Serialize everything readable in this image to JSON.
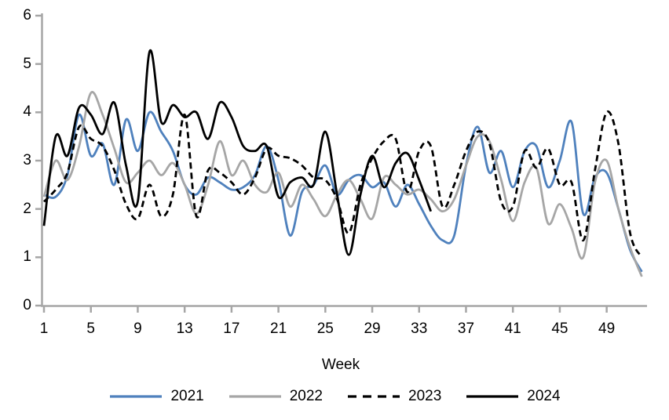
{
  "chart_data": {
    "type": "line",
    "title": "",
    "xlabel": "Week",
    "ylabel": "",
    "xlim": [
      1,
      52
    ],
    "ylim": [
      0,
      6
    ],
    "grid": false,
    "smoothed": true,
    "legend_position": "bottom",
    "x_ticks": [
      1,
      5,
      9,
      13,
      17,
      21,
      25,
      29,
      33,
      37,
      41,
      45,
      49
    ],
    "y_ticks": [
      0,
      1,
      2,
      3,
      4,
      5,
      6
    ],
    "axis_color": "#a6a6a6",
    "series": [
      {
        "name": "2021",
        "color": "#4f81bd",
        "style": "solid",
        "start_week": 1,
        "values": [
          2.3,
          2.25,
          2.7,
          3.95,
          3.1,
          3.35,
          2.5,
          3.85,
          3.2,
          4.0,
          3.6,
          3.2,
          2.5,
          2.3,
          2.65,
          2.55,
          2.4,
          2.45,
          2.7,
          3.3,
          2.6,
          1.45,
          2.35,
          2.5,
          2.9,
          2.3,
          2.6,
          2.7,
          2.45,
          2.55,
          2.05,
          2.5,
          2.1,
          1.65,
          1.35,
          1.45,
          2.9,
          3.7,
          2.75,
          3.2,
          2.45,
          3.2,
          3.3,
          2.45,
          3.0,
          3.8,
          1.9,
          2.65,
          2.75,
          2.0,
          1.15,
          0.7
        ]
      },
      {
        "name": "2022",
        "color": "#a6a6a6",
        "style": "solid",
        "start_week": 1,
        "values": [
          2.25,
          3.0,
          2.6,
          3.3,
          4.4,
          3.95,
          3.25,
          2.55,
          2.75,
          3.0,
          2.7,
          2.95,
          2.5,
          1.9,
          2.5,
          3.4,
          2.7,
          3.0,
          2.5,
          2.35,
          2.75,
          2.05,
          2.5,
          2.2,
          1.85,
          2.3,
          2.6,
          2.2,
          1.8,
          2.65,
          2.5,
          2.3,
          2.4,
          2.2,
          1.95,
          2.2,
          2.9,
          3.5,
          3.4,
          2.6,
          1.75,
          2.55,
          2.85,
          1.7,
          2.1,
          1.6,
          1.0,
          2.55,
          3.0,
          2.0,
          1.2,
          0.6
        ]
      },
      {
        "name": "2023",
        "color": "#000000",
        "style": "dashed",
        "start_week": 1,
        "values": [
          2.15,
          2.4,
          2.75,
          3.7,
          3.45,
          3.3,
          2.8,
          2.1,
          1.8,
          2.5,
          1.85,
          2.3,
          3.95,
          1.85,
          2.8,
          2.75,
          2.55,
          2.3,
          2.65,
          3.25,
          3.1,
          3.05,
          2.9,
          2.65,
          2.6,
          2.2,
          1.5,
          2.5,
          3.05,
          3.4,
          3.45,
          2.35,
          3.2,
          3.3,
          2.05,
          2.5,
          3.2,
          3.6,
          3.35,
          2.15,
          2.05,
          3.2,
          2.85,
          3.25,
          2.5,
          2.55,
          1.35,
          2.8,
          4.0,
          3.35,
          1.5,
          1.0
        ]
      },
      {
        "name": "2024",
        "color": "#000000",
        "style": "solid",
        "start_week": 1,
        "values": [
          1.65,
          3.5,
          3.1,
          4.1,
          3.95,
          3.55,
          4.2,
          2.9,
          2.15,
          5.25,
          3.8,
          4.15,
          3.9,
          4.0,
          3.45,
          4.2,
          3.9,
          3.3,
          3.2,
          3.3,
          2.25,
          2.55,
          2.65,
          2.5,
          3.6,
          2.3,
          1.05,
          2.3,
          3.1,
          2.45,
          2.95,
          3.15,
          2.6,
          1.95
        ]
      }
    ]
  },
  "axis": {
    "x_label": "Week"
  },
  "legend": {
    "items": [
      {
        "label": "2021"
      },
      {
        "label": "2022"
      },
      {
        "label": "2023"
      },
      {
        "label": "2024"
      }
    ]
  }
}
